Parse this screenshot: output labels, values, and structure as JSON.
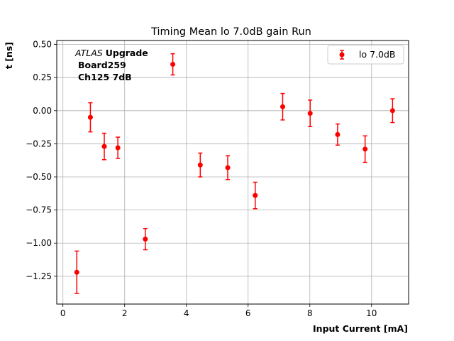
{
  "chart_data": {
    "type": "scatter",
    "title": "Timing Mean lo 7.0dB gain Run",
    "xlabel": "Input Current [mA]",
    "ylabel": "t [ns]",
    "xlim": [
      -0.2,
      11.2
    ],
    "ylim": [
      -1.46,
      0.53
    ],
    "xticks": [
      0,
      2,
      4,
      6,
      8,
      10
    ],
    "yticks": [
      -1.25,
      -1.0,
      -0.75,
      -0.5,
      -0.25,
      0.0,
      0.25,
      0.5
    ],
    "xtick_labels": [
      "0",
      "2",
      "4",
      "6",
      "8",
      "10"
    ],
    "ytick_labels": [
      "−1.25",
      "−1.00",
      "−0.75",
      "−0.50",
      "−0.25",
      "0.00",
      "0.25",
      "0.50"
    ],
    "grid": true,
    "legend_position": "top-right",
    "annotation": {
      "italic": "ATLAS",
      "bold": "Upgrade",
      "line2": "Board259",
      "line3": "Ch125 7dB"
    },
    "series": [
      {
        "name": "lo 7.0dB",
        "color": "#ff0000",
        "x": [
          0.45,
          0.89,
          1.34,
          1.78,
          2.67,
          3.56,
          4.45,
          5.34,
          6.23,
          7.12,
          8.01,
          8.9,
          9.79,
          10.68
        ],
        "y": [
          -1.22,
          -0.05,
          -0.27,
          -0.28,
          -0.97,
          0.35,
          -0.41,
          -0.43,
          -0.64,
          0.03,
          -0.02,
          -0.18,
          -0.29,
          0.0
        ],
        "err": [
          0.16,
          0.11,
          0.1,
          0.08,
          0.08,
          0.08,
          0.09,
          0.09,
          0.1,
          0.1,
          0.1,
          0.08,
          0.1,
          0.09
        ]
      }
    ]
  }
}
